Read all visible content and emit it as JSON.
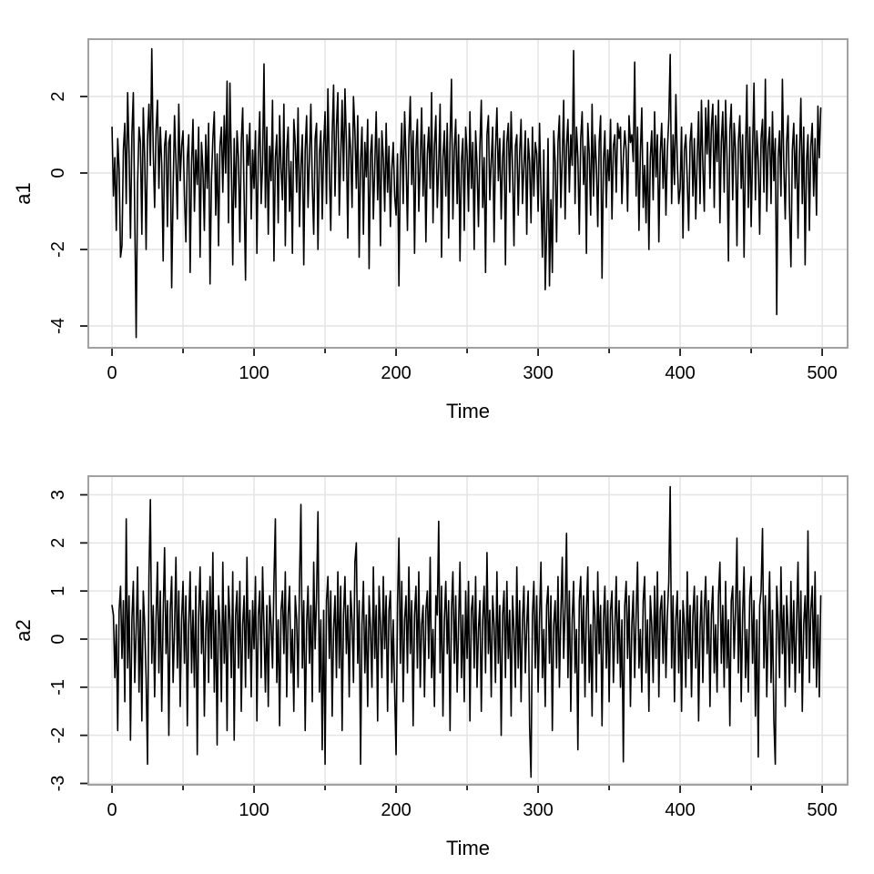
{
  "page": {
    "background": "#ffffff"
  },
  "chart_data": [
    {
      "type": "line",
      "title": "",
      "xlabel": "Time",
      "ylabel": "a1",
      "x_start": 0,
      "x_step": 1,
      "n": 500,
      "xlim": [
        -16.7,
        517.9
      ],
      "ylim": [
        -4.57,
        3.5
      ],
      "x_major_ticks": [
        0,
        100,
        200,
        300,
        400,
        500
      ],
      "x_minor_ticks": [
        0,
        50,
        100,
        150,
        200,
        250,
        300,
        350,
        400,
        450,
        500
      ],
      "y_ticks": [
        -4,
        -2,
        0,
        2
      ],
      "grid": true,
      "legend": "none",
      "line_color": "#000000",
      "grid_color": "#e4e4e4",
      "border_color": "#a1a1a1",
      "tick_color": "#1a1a1a",
      "label_color": "#000000",
      "values": [
        1.2,
        -0.6,
        0.4,
        -1.5,
        0.9,
        0.1,
        -2.2,
        -1.9,
        0.6,
        1.3,
        -0.8,
        2.1,
        0.5,
        -1.7,
        1.0,
        2.1,
        -1.1,
        -4.3,
        -0.3,
        1.2,
        0.8,
        -1.6,
        1.7,
        0.4,
        -2.0,
        0.9,
        1.8,
        0.2,
        3.25,
        0.6,
        -0.9,
        1.1,
        1.9,
        -0.4,
        1.2,
        0.2,
        -2.3,
        0.7,
        1.1,
        -1.4,
        0.8,
        1.0,
        -3.0,
        -0.5,
        1.5,
        0.3,
        -1.2,
        1.8,
        -0.2,
        0.7,
        1.1,
        -0.6,
        -1.8,
        0.4,
        1.0,
        -2.6,
        0.2,
        1.4,
        -1.0,
        0.6,
        -0.3,
        1.2,
        -2.2,
        0.8,
        0.1,
        -1.5,
        1.0,
        -0.4,
        1.3,
        -2.9,
        -0.2,
        0.9,
        1.6,
        -1.1,
        0.5,
        -1.9,
        0.7,
        1.2,
        -0.5,
        1.5,
        0.0,
        2.4,
        -1.3,
        2.35,
        0.3,
        -2.4,
        0.9,
        -0.9,
        1.1,
        0.4,
        -1.8,
        0.8,
        1.7,
        -0.6,
        -2.8,
        1.0,
        0.2,
        1.3,
        -1.2,
        0.6,
        -0.4,
        1.1,
        -2.1,
        0.5,
        1.6,
        -0.8,
        0.3,
        2.85,
        -0.9,
        1.2,
        -1.6,
        0.7,
        -0.2,
        1.9,
        -2.3,
        0.4,
        1.0,
        -1.3,
        1.5,
        0.1,
        -0.7,
        1.8,
        -1.9,
        0.6,
        1.2,
        -1.0,
        0.3,
        -2.1,
        1.4,
        0.8,
        -0.5,
        1.7,
        -1.4,
        0.2,
        1.0,
        -2.4,
        0.6,
        1.5,
        -0.9,
        0.4,
        1.8,
        -0.3,
        -1.6,
        0.9,
        1.3,
        -2.0,
        0.5,
        1.1,
        -1.2,
        0.7,
        1.6,
        -0.8,
        2.2,
        0.1,
        -1.5,
        1.0,
        2.3,
        -0.6,
        1.2,
        2.1,
        -1.1,
        0.4,
        1.9,
        -0.2,
        2.2,
        0.8,
        -1.7,
        1.3,
        0.6,
        -0.9,
        2.0,
        1.1,
        -0.4,
        1.5,
        -2.2,
        0.3,
        1.2,
        -1.6,
        0.8,
        -0.1,
        1.4,
        -2.5,
        0.5,
        1.0,
        -1.2,
        0.2,
        1.6,
        -0.7,
        0.9,
        -1.9,
        1.1,
        0.4,
        -1.0,
        1.3,
        -0.5,
        0.7,
        -1.4,
        0.1,
        0.8,
        -0.6,
        -1.1,
        0.5,
        -2.95,
        0.2,
        1.3,
        -0.8,
        1.6,
        0.4,
        -1.5,
        0.9,
        2.0,
        -0.3,
        1.1,
        -2.1,
        0.6,
        1.4,
        -1.0,
        0.3,
        1.7,
        -0.6,
        1.0,
        -1.8,
        0.5,
        1.2,
        -0.4,
        2.1,
        -1.3,
        0.7,
        1.5,
        -0.9,
        0.2,
        1.8,
        -2.2,
        0.4,
        1.1,
        -0.6,
        1.3,
        -1.7,
        0.8,
        2.45,
        -1.2,
        0.6,
        1.4,
        -0.8,
        1.0,
        -2.3,
        0.3,
        0.9,
        -1.5,
        1.2,
        0.5,
        -1.0,
        1.6,
        -0.4,
        0.8,
        -2.0,
        1.1,
        0.2,
        -1.4,
        0.7,
        1.9,
        -0.9,
        0.4,
        -2.6,
        1.0,
        1.5,
        -0.7,
        0.3,
        1.2,
        -1.8,
        0.6,
        1.7,
        -0.2,
        0.9,
        -1.2,
        0.4,
        1.1,
        -2.4,
        0.8,
        1.3,
        -0.5,
        1.6,
        0.1,
        -1.9,
        0.7,
        1.0,
        -1.1,
        0.5,
        1.4,
        -0.8,
        0.2,
        1.1,
        -1.6,
        0.9,
        0.3,
        -1.3,
        1.2,
        -0.6,
        0.8,
        0.5,
        -1.0,
        1.3,
        -0.4,
        -2.2,
        0.6,
        -3.05,
        -1.5,
        0.9,
        -2.95,
        -0.7,
        -2.6,
        1.1,
        0.3,
        -1.8,
        0.8,
        1.5,
        -0.9,
        0.4,
        1.9,
        -1.2,
        0.7,
        1.4,
        -0.5,
        1.0,
        0.2,
        3.2,
        -0.8,
        1.2,
        0.4,
        -1.6,
        0.9,
        1.6,
        -0.3,
        0.7,
        -2.1,
        1.3,
        0.5,
        -1.1,
        1.8,
        -0.6,
        1.0,
        0.2,
        -1.4,
        0.8,
        1.5,
        -2.75,
        0.3,
        1.1,
        -0.9,
        0.6,
        -0.2,
        1.4,
        -1.2,
        0.7,
        1.0,
        -0.5,
        1.3,
        0.9,
        1.2,
        -0.8,
        0.4,
        1.1,
        0.6,
        -1.0,
        1.5,
        0.8,
        1.0,
        0.3,
        2.9,
        -0.6,
        1.2,
        -1.5,
        0.5,
        1.7,
        -0.9,
        0.2,
        -1.3,
        0.8,
        -2.0,
        0.4,
        1.1,
        -0.7,
        1.6,
        -0.1,
        1.0,
        -1.8,
        0.5,
        1.3,
        -0.4,
        0.9,
        -1.1,
        0.6,
        1.4,
        3.1,
        -0.8,
        1.0,
        -0.3,
        2.05,
        0.3,
        -0.8,
        -0.4,
        1.2,
        -1.7,
        0.6,
        1.0,
        -0.2,
        -1.5,
        0.8,
        1.3,
        -0.6,
        0.9,
        -1.2,
        0.4,
        1.6,
        -0.8,
        1.9,
        0.2,
        -1.0,
        1.7,
        0.5,
        1.9,
        -0.4,
        1.2,
        1.8,
        -0.9,
        1.5,
        0.3,
        1.9,
        -1.3,
        0.8,
        1.6,
        -0.5,
        1.9,
        0.4,
        -2.3,
        1.1,
        1.8,
        -0.7,
        1.3,
        0.6,
        -1.9,
        0.8,
        1.5,
        -0.4,
        1.0,
        -2.2,
        0.5,
        2.3,
        -0.9,
        1.2,
        -1.4,
        0.6,
        2.35,
        -0.7,
        1.1,
        0.3,
        -1.6,
        0.9,
        1.4,
        -0.5,
        2.45,
        -1.0,
        0.7,
        1.2,
        -0.8,
        1.6,
        -0.2,
        0.9,
        -3.7,
        0.4,
        1.1,
        -0.6,
        2.45,
        0.2,
        -1.2,
        0.8,
        1.5,
        -0.9,
        -2.45,
        0.6,
        1.3,
        -0.4,
        1.0,
        -1.7,
        0.5,
        1.95,
        -0.8,
        1.2,
        -2.4,
        0.3,
        1.0,
        -1.5,
        0.7,
        1.3,
        -0.6,
        0.9,
        -1.1,
        1.75,
        0.4,
        1.7
      ]
    },
    {
      "type": "line",
      "title": "",
      "xlabel": "Time",
      "ylabel": "a2",
      "x_start": 0,
      "x_step": 1,
      "n": 500,
      "xlim": [
        -16.7,
        517.9
      ],
      "ylim": [
        -3.028,
        3.388
      ],
      "x_major_ticks": [
        0,
        100,
        200,
        300,
        400,
        500
      ],
      "x_minor_ticks": [
        0,
        50,
        100,
        150,
        200,
        250,
        300,
        350,
        400,
        450,
        500
      ],
      "y_ticks": [
        -3,
        -2,
        -1,
        0,
        1,
        2,
        3
      ],
      "grid": true,
      "legend": "none",
      "line_color": "#000000",
      "grid_color": "#e4e4e4",
      "border_color": "#a1a1a1",
      "tick_color": "#1a1a1a",
      "label_color": "#000000",
      "values": [
        0.7,
        0.5,
        -0.8,
        0.3,
        -1.9,
        0.6,
        1.1,
        -0.4,
        0.8,
        -1.3,
        2.5,
        -0.6,
        0.9,
        -2.1,
        0.4,
        1.2,
        -0.9,
        0.2,
        1.5,
        -1.1,
        0.6,
        -1.7,
        1.0,
        0.3,
        -0.8,
        -2.6,
        1.3,
        2.9,
        -0.5,
        0.7,
        -1.2,
        0.4,
        1.6,
        -0.7,
        1.0,
        -1.5,
        0.5,
        1.9,
        -0.3,
        0.8,
        -2.0,
        0.6,
        1.3,
        -0.9,
        0.2,
        1.7,
        -0.6,
        1.0,
        -1.4,
        0.4,
        1.2,
        -0.5,
        0.9,
        -1.8,
        0.3,
        1.4,
        -0.7,
        0.6,
        -1.0,
        1.1,
        -2.4,
        0.5,
        1.5,
        -0.3,
        0.8,
        -1.6,
        0.2,
        1.0,
        -0.9,
        1.3,
        -0.4,
        1.8,
        -1.1,
        0.6,
        -2.2,
        0.9,
        0.3,
        -1.3,
        1.6,
        -0.5,
        0.7,
        -1.9,
        1.1,
        0.4,
        -0.8,
        1.4,
        -2.1,
        0.5,
        1.0,
        -0.6,
        1.2,
        -1.5,
        0.3,
        0.9,
        -1.0,
        1.7,
        -0.4,
        0.6,
        -1.2,
        0.8,
        -0.2,
        1.3,
        -1.7,
        0.5,
        1.0,
        -0.8,
        1.5,
        0.2,
        -1.1,
        0.7,
        -1.4,
        0.9,
        0.3,
        -0.6,
        1.2,
        2.5,
        -0.9,
        0.4,
        -1.8,
        0.6,
        1.0,
        -0.3,
        1.4,
        -1.2,
        0.5,
        1.1,
        -0.7,
        0.2,
        -1.5,
        0.9,
        0.4,
        -1.0,
        1.2,
        2.8,
        -0.6,
        0.8,
        -1.9,
        0.3,
        1.1,
        -0.5,
        0.7,
        -1.3,
        1.6,
        -0.2,
        0.9,
        2.65,
        -1.1,
        0.4,
        -2.3,
        0.6,
        -2.6,
        0.8,
        1.3,
        -0.4,
        1.0,
        -1.6,
        0.2,
        0.9,
        -0.8,
        1.4,
        -0.6,
        1.1,
        -1.9,
        0.5,
        1.3,
        -0.3,
        0.7,
        -1.2,
        1.0,
        0.4,
        -0.9,
        1.6,
        2.0,
        -0.5,
        0.8,
        -2.6,
        0.3,
        1.2,
        -0.7,
        0.5,
        -1.4,
        0.9,
        0.2,
        -1.0,
        1.5,
        -0.4,
        0.7,
        -1.7,
        1.1,
        0.3,
        -0.8,
        1.3,
        -0.2,
        0.9,
        -1.5,
        0.6,
        1.0,
        -0.9,
        0.4,
        -1.1,
        -2.4,
        0.7,
        2.1,
        -0.5,
        1.2,
        -1.3,
        0.4,
        0.9,
        -0.7,
        1.5,
        -0.3,
        0.8,
        -1.8,
        0.5,
        1.1,
        -0.6,
        1.4,
        -1.0,
        0.3,
        0.7,
        -1.2,
        0.6,
        1.0,
        -0.4,
        1.7,
        -0.8,
        0.2,
        -1.4,
        0.9,
        0.5,
        2.45,
        -0.7,
        1.1,
        -1.6,
        0.4,
        1.2,
        -0.3,
        0.8,
        -1.9,
        0.6,
        1.4,
        -0.5,
        0.9,
        -1.1,
        0.3,
        1.6,
        -0.8,
        0.5,
        -1.3,
        1.0,
        -0.4,
        1.2,
        -1.7,
        0.6,
        0.9,
        -0.6,
        1.3,
        -1.0,
        0.2,
        0.8,
        -1.5,
        0.4,
        1.1,
        -0.7,
        1.8,
        -0.3,
        0.6,
        -1.2,
        0.9,
        0.3,
        -0.9,
        1.4,
        -0.5,
        0.7,
        -2.0,
        0.5,
        1.0,
        -0.8,
        1.2,
        -0.4,
        0.6,
        -1.6,
        0.9,
        0.2,
        -1.0,
        1.5,
        -0.6,
        0.8,
        -1.3,
        0.4,
        1.1,
        -0.7,
        0.3,
        1.0,
        -1.8,
        -2.87,
        0.5,
        1.2,
        -0.6,
        0.9,
        -1.1,
        0.4,
        1.6,
        -0.8,
        0.2,
        -1.4,
        0.7,
        1.1,
        -0.5,
        0.9,
        -1.9,
        0.3,
        0.8,
        -0.6,
        1.3,
        -1.0,
        0.5,
        1.7,
        -0.4,
        0.6,
        2.2,
        -0.8,
        1.0,
        -1.5,
        0.4,
        1.2,
        -0.7,
        0.2,
        -2.3,
        0.8,
        1.3,
        -0.5,
        0.9,
        -1.2,
        0.6,
        1.5,
        -0.9,
        0.3,
        -1.6,
        1.0,
        0.5,
        -1.1,
        1.4,
        -0.3,
        0.7,
        -1.8,
        0.4,
        1.1,
        -0.6,
        0.8,
        -1.3,
        0.6,
        1.0,
        -0.9,
        0.2,
        1.3,
        -0.5,
        0.8,
        -1.0,
        0.4,
        -2.55,
        0.7,
        1.2,
        -0.4,
        0.9,
        -1.4,
        0.3,
        1.0,
        -0.8,
        0.5,
        1.6,
        -0.6,
        0.2,
        -1.1,
        0.8,
        1.3,
        -0.7,
        0.4,
        -1.5,
        0.9,
        0.3,
        -0.9,
        1.1,
        -0.4,
        1.4,
        -1.2,
        0.6,
        0.9,
        -0.5,
        1.0,
        -0.8,
        0.5,
        1.2,
        3.17,
        -0.6,
        0.9,
        -1.3,
        0.4,
        1.0,
        -0.7,
        0.6,
        -1.5,
        0.8,
        0.3,
        -1.0,
        1.4,
        -0.4,
        0.7,
        -1.2,
        0.5,
        1.1,
        -0.6,
        0.9,
        -1.7,
        0.2,
        1.0,
        -0.9,
        0.6,
        1.3,
        -0.3,
        0.8,
        -1.4,
        0.5,
        1.1,
        -0.7,
        0.3,
        -1.1,
        0.9,
        1.6,
        -0.5,
        0.7,
        -1.0,
        1.2,
        -0.6,
        0.4,
        -1.8,
        0.8,
        1.1,
        -0.4,
        0.6,
        2.1,
        -0.7,
        1.0,
        -1.3,
        0.5,
        1.5,
        -0.8,
        0.2,
        -1.1,
        0.9,
        1.3,
        -0.5,
        0.8,
        -1.6,
        0.4,
        -2.45,
        0.7,
        1.0,
        2.3,
        -0.6,
        0.9,
        -1.2,
        0.3,
        1.4,
        -0.9,
        0.6,
        -1.7,
        -2.6,
        1.1,
        0.4,
        -0.8,
        1.5,
        -0.3,
        0.7,
        -1.4,
        0.9,
        0.2,
        -1.0,
        1.2,
        -0.5,
        0.8,
        -1.1,
        0.4,
        1.6,
        -0.7,
        1.0,
        -1.5,
        0.3,
        0.9,
        -0.4,
        2.25,
        -0.9,
        0.6,
        1.1,
        -0.6,
        1.4,
        -1.0,
        0.5,
        -1.2,
        0.9
      ]
    }
  ]
}
